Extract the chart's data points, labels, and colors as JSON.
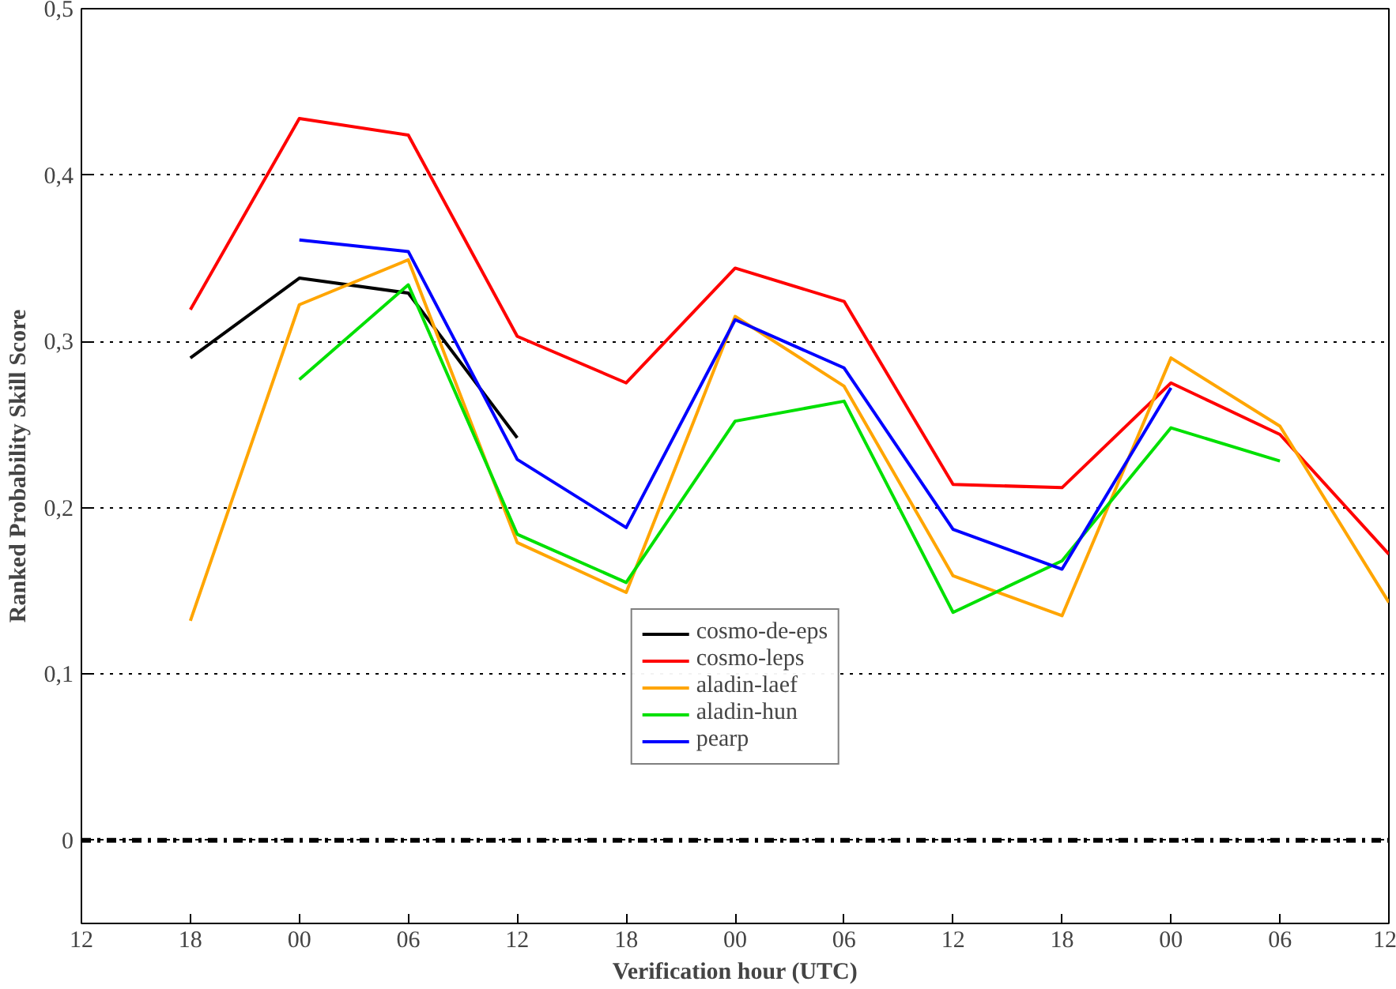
{
  "chart_data": {
    "type": "line",
    "xlabel": "Verification hour (UTC)",
    "ylabel": "Ranked Probability Skill Score",
    "categories": [
      "12",
      "18",
      "00",
      "06",
      "12",
      "18",
      "00",
      "06",
      "12",
      "18",
      "00",
      "06",
      "12"
    ],
    "series": [
      {
        "name": "cosmo-de-eps",
        "color": "#000000",
        "values": [
          null,
          0.29,
          0.338,
          0.329,
          0.242,
          null,
          null,
          null,
          null,
          null,
          null,
          null,
          null
        ]
      },
      {
        "name": "cosmo-leps",
        "color": "#ff0000",
        "values": [
          null,
          0.319,
          0.434,
          0.424,
          0.303,
          0.275,
          0.344,
          0.324,
          0.214,
          0.212,
          0.275,
          0.244,
          0.172
        ]
      },
      {
        "name": "aladin-laef",
        "color": "#ffa500",
        "values": [
          null,
          0.132,
          0.322,
          0.349,
          0.179,
          0.149,
          0.315,
          0.273,
          0.159,
          0.135,
          0.29,
          0.249,
          0.143
        ]
      },
      {
        "name": "aladin-hun",
        "color": "#00e000",
        "values": [
          null,
          null,
          0.277,
          0.334,
          0.184,
          0.155,
          0.252,
          0.264,
          0.137,
          0.168,
          0.248,
          0.228,
          null
        ]
      },
      {
        "name": "pearp",
        "color": "#0000ff",
        "values": [
          null,
          null,
          0.361,
          0.354,
          0.229,
          0.188,
          0.313,
          0.284,
          0.187,
          0.163,
          0.272,
          null,
          null
        ]
      }
    ],
    "ylim": [
      -0.05,
      0.5
    ],
    "yticks": [
      {
        "value": 0,
        "label": "0"
      },
      {
        "value": 0.1,
        "label": "0,1"
      },
      {
        "value": 0.2,
        "label": "0,2"
      },
      {
        "value": 0.3,
        "label": "0,3"
      },
      {
        "value": 0.4,
        "label": "0,4"
      },
      {
        "value": 0.5,
        "label": "0,5"
      }
    ],
    "ref_lines": [
      {
        "axis": "y",
        "value": 0,
        "color": "#000000",
        "line_style": "dashdot"
      }
    ],
    "grid": "y",
    "legend": "bottom",
    "marker": "none",
    "line_style": "solid"
  }
}
